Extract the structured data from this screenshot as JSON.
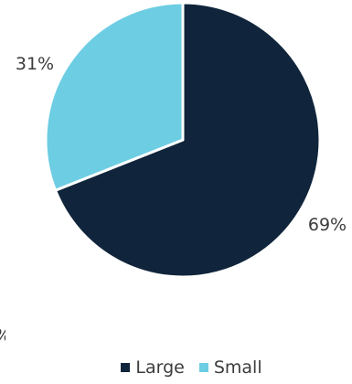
{
  "chart_data": {
    "type": "pie",
    "title": "",
    "slices": [
      {
        "label": "Large",
        "value": 69,
        "value_label": "69%",
        "color": "#10253b"
      },
      {
        "label": "Small",
        "value": 31,
        "value_label": "31%",
        "color": "#6dcde3"
      }
    ],
    "start": "top, clockwise",
    "legend": {
      "position": "bottom",
      "items": [
        {
          "label": "Large",
          "color": "#10253b"
        },
        {
          "label": "Small",
          "color": "#6dcde3"
        }
      ]
    }
  },
  "edge_fragment": "%"
}
